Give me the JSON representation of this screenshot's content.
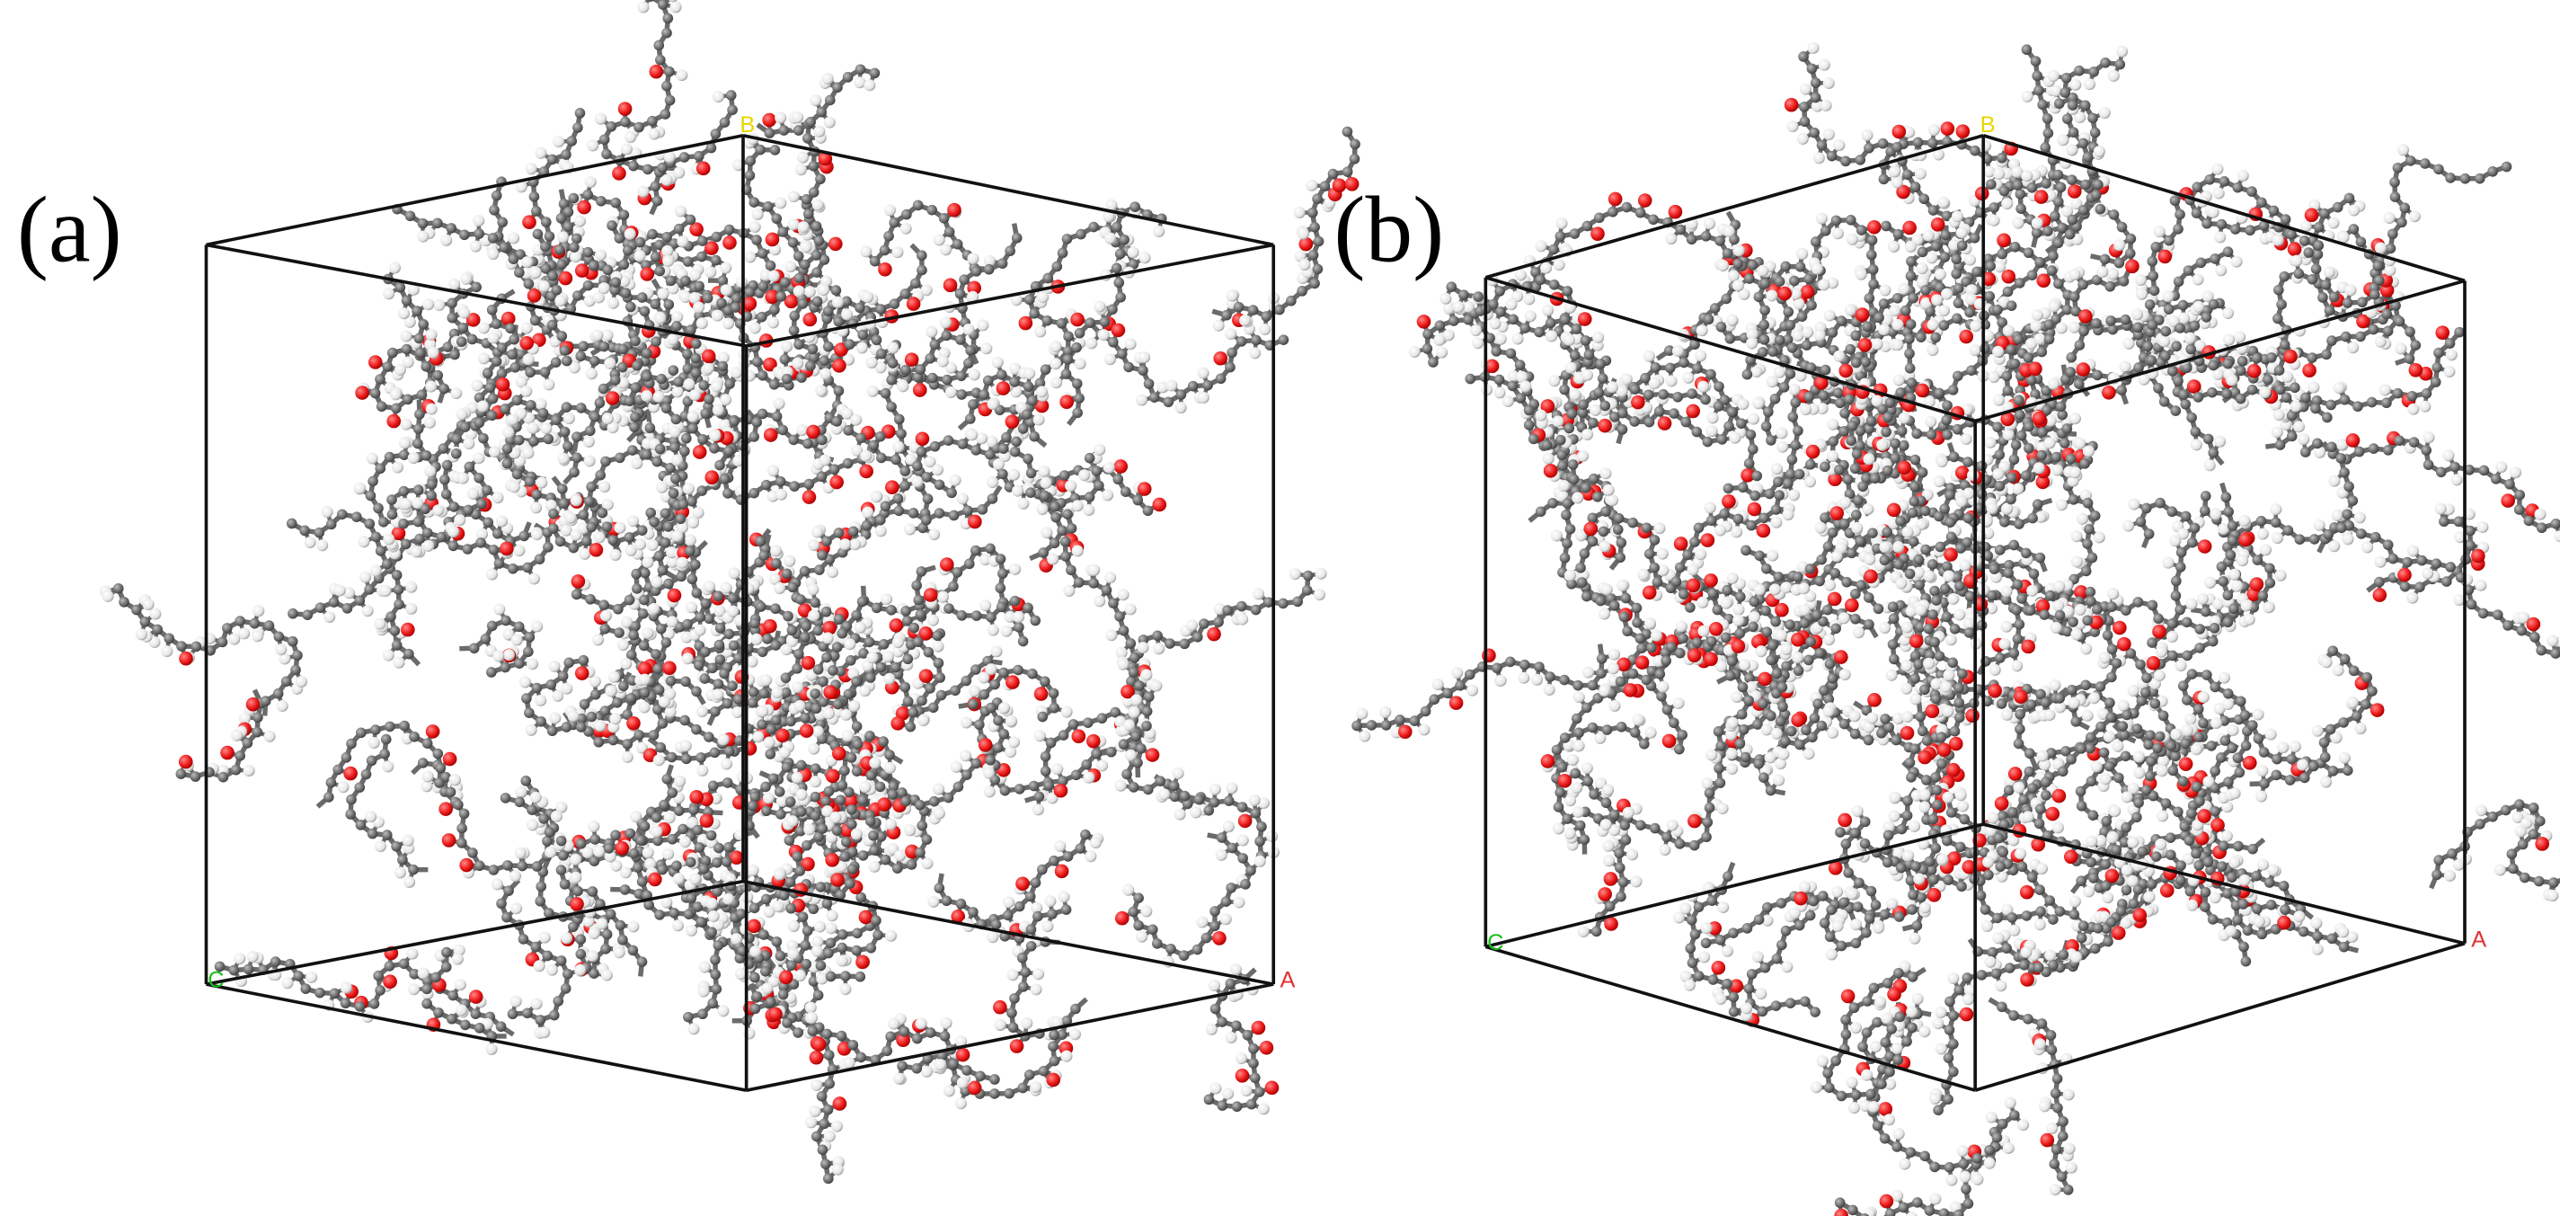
{
  "panels": [
    {
      "label": "(a)",
      "axes": {
        "b": "B",
        "c": "C",
        "a": "A"
      }
    },
    {
      "label": "(b)",
      "axes": {
        "b": "B",
        "c": "C",
        "a": "A"
      }
    }
  ]
}
